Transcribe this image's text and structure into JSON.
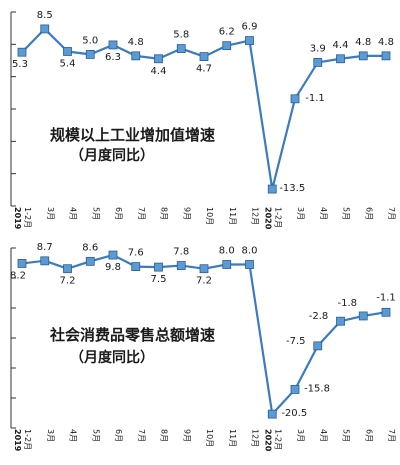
{
  "chart_data": [
    {
      "type": "line",
      "title": "规模以上工业增加值增速",
      "subtitle": "（月度同比）",
      "categories": [
        "1-2月",
        "3月",
        "4月",
        "5月",
        "6月",
        "7月",
        "8月",
        "9月",
        "10月",
        "11月",
        "12月",
        "1-2月",
        "3月",
        "4月",
        "5月",
        "6月",
        "7月"
      ],
      "year_markers": [
        {
          "index": 0,
          "label": "2019"
        },
        {
          "index": 11,
          "label": "2020"
        }
      ],
      "values": [
        5.3,
        8.5,
        5.4,
        5.0,
        6.3,
        4.8,
        4.4,
        5.8,
        4.7,
        6.2,
        6.9,
        -13.5,
        -1.1,
        3.9,
        4.4,
        4.8,
        4.8
      ],
      "value_labels": [
        "5.3",
        "8.5",
        "5.4",
        "5.0",
        "6.3",
        "4.8",
        "4.4",
        "5.8",
        "4.7",
        "6.2",
        "6.9",
        "-13.5",
        "-1.1",
        "3.9",
        "4.4",
        "4.8",
        "4.8"
      ],
      "ylim": [
        -15,
        10
      ],
      "ytick_count": 7,
      "line_color": "#3b7bbf",
      "marker_color": "#5a9bd5",
      "grid": false
    },
    {
      "type": "line",
      "title": "社会消费品零售总额增速",
      "subtitle": "（月度同比）",
      "categories": [
        "1-2月",
        "3月",
        "4月",
        "5月",
        "6月",
        "7月",
        "8月",
        "9月",
        "10月",
        "11月",
        "12月",
        "1-2月",
        "3月",
        "4月",
        "5月",
        "6月",
        "7月"
      ],
      "year_markers": [
        {
          "index": 0,
          "label": "2019"
        },
        {
          "index": 11,
          "label": "2020"
        }
      ],
      "values": [
        8.2,
        8.7,
        7.2,
        8.6,
        9.8,
        7.6,
        7.5,
        7.8,
        7.2,
        8.0,
        8.0,
        -20.5,
        -15.8,
        -7.5,
        -2.8,
        -1.8,
        -1.1
      ],
      "value_labels": [
        "8.2",
        "8.7",
        "7.2",
        "8.6",
        "9.8",
        "7.6",
        "7.5",
        "7.8",
        "7.2",
        "8.0",
        "8.0",
        "-20.5",
        "-15.8",
        "-7.5",
        "-2.8",
        "-1.8",
        "-1.1"
      ],
      "ylim": [
        -22,
        10
      ],
      "ytick_count": 7,
      "line_color": "#3b7bbf",
      "marker_color": "#5a9bd5",
      "grid": false
    }
  ]
}
